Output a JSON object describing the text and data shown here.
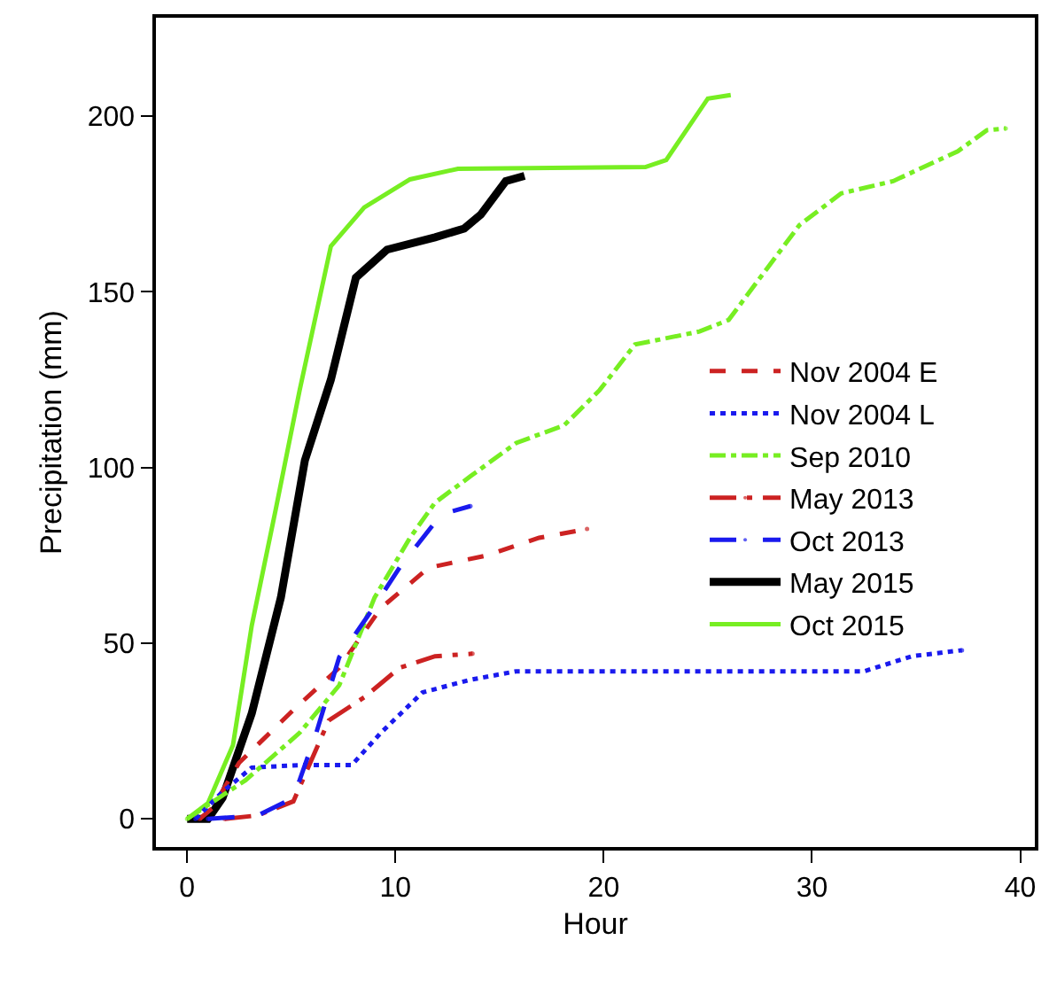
{
  "chart_data": {
    "type": "line",
    "xlabel": "Hour",
    "ylabel": "Precipitation (mm)",
    "xlim": [
      -1.5,
      40.7
    ],
    "ylim": [
      -8,
      228
    ],
    "xticks": [
      0,
      10,
      20,
      30,
      40
    ],
    "yticks": [
      0,
      50,
      100,
      150,
      200
    ],
    "legend": "right",
    "series": [
      {
        "name": "Nov 2004 E",
        "color": "#cc2222",
        "line_style": "dashed",
        "x": [
          0.6,
          1.2,
          2.5,
          5.1,
          7.3,
          9.3,
          11.6,
          14.4,
          16.9,
          19.2
        ],
        "values": [
          0,
          3,
          16,
          31,
          43,
          60,
          71.5,
          75,
          80,
          82.5
        ]
      },
      {
        "name": "Nov 2004 L",
        "color": "#1a1aee",
        "line_style": "dotted",
        "x": [
          0.4,
          1.7,
          3.1,
          5.4,
          7.9,
          9.3,
          11.3,
          13.6,
          15.8,
          32.5,
          34.8,
          37.2
        ],
        "values": [
          0,
          7.7,
          14.6,
          15.3,
          15.3,
          24.5,
          36,
          39.6,
          42,
          42,
          46.3,
          48
        ]
      },
      {
        "name": "Sep 2010",
        "color": "#77ee22",
        "line_style": "dashdot",
        "x": [
          0,
          2.8,
          5.4,
          7.3,
          9,
          10.7,
          11.9,
          13.6,
          15.8,
          18.1,
          19.8,
          21.5,
          24.6,
          26,
          27.7,
          29.4,
          31.4,
          33.9,
          37,
          38.4,
          39.3
        ],
        "values": [
          0,
          11,
          24.5,
          38,
          63,
          80,
          90,
          97.5,
          107,
          112,
          122,
          135,
          138.7,
          142,
          155.5,
          169,
          178,
          181.5,
          190,
          196,
          196.5
        ]
      },
      {
        "name": "May 2013",
        "color": "#cc2222",
        "line_style": "longdashdot",
        "x": [
          1.8,
          3.4,
          5.1,
          6.8,
          8.5,
          10.2,
          11.9,
          13.7
        ],
        "values": [
          0,
          1,
          5,
          28,
          34.6,
          43,
          46.3,
          47
        ]
      },
      {
        "name": "Oct 2013",
        "color": "#1a1aee",
        "line_style": "longdash",
        "x": [
          1,
          3.4,
          5.1,
          6.2,
          7.3,
          8.7,
          10.2,
          12.2,
          13.6
        ],
        "values": [
          0,
          1,
          6,
          24.5,
          46,
          58,
          71.5,
          86.7,
          89
        ]
      },
      {
        "name": "May 2015",
        "color": "#000000",
        "line_style": "solid",
        "x": [
          0,
          1,
          1.7,
          3.1,
          4.5,
          5.65,
          6.9,
          8.1,
          9.6,
          11.9,
          13.3,
          14.1,
          15.3,
          16.2
        ],
        "values": [
          0,
          0,
          6,
          30,
          63,
          102,
          125,
          154,
          162,
          165.5,
          168,
          172,
          181.5,
          183
        ]
      },
      {
        "name": "Oct 2015",
        "color": "#77ee22",
        "line_style": "solid",
        "x": [
          0,
          1,
          2.2,
          3.1,
          4.25,
          5.4,
          6.9,
          8.5,
          10.7,
          13,
          22,
          23,
          25,
          26.1
        ],
        "values": [
          0,
          4.5,
          21,
          55,
          88,
          122,
          163,
          174,
          182,
          185,
          185.5,
          187.5,
          205,
          206
        ]
      }
    ]
  }
}
